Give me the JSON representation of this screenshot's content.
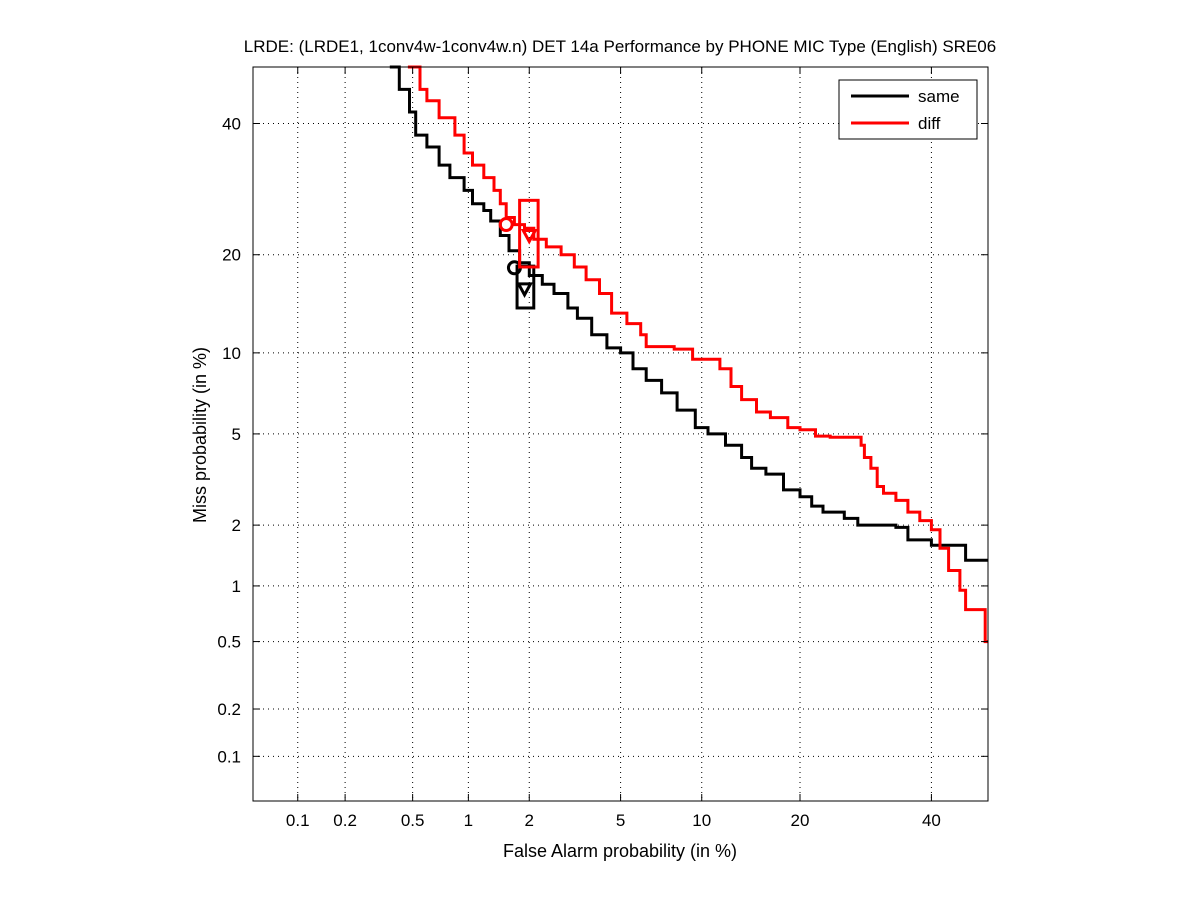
{
  "chart_data": {
    "type": "line",
    "title": "LRDE: (LRDE1, 1conv4w-1conv4w.n) DET 14a Performance by PHONE MIC Type (English) SRE06",
    "xlabel": "False Alarm probability (in %)",
    "ylabel": "Miss probability (in %)",
    "xscale": "normal-deviate (probit)",
    "yscale": "normal-deviate (probit)",
    "xlim": [
      0.05,
      50
    ],
    "ylim": [
      0.05,
      50
    ],
    "grid": true,
    "legend_position": "top-right",
    "x_ticks": [
      {
        "value": 0.1,
        "label": "0.1"
      },
      {
        "value": 0.2,
        "label": "0.2"
      },
      {
        "value": 0.5,
        "label": "0.5"
      },
      {
        "value": 1,
        "label": "1"
      },
      {
        "value": 2,
        "label": "2"
      },
      {
        "value": 5,
        "label": "5"
      },
      {
        "value": 10,
        "label": "10"
      },
      {
        "value": 20,
        "label": "20"
      },
      {
        "value": 40,
        "label": "40"
      }
    ],
    "y_ticks": [
      {
        "value": 0.1,
        "label": "0.1"
      },
      {
        "value": 0.2,
        "label": "0.2"
      },
      {
        "value": 0.5,
        "label": "0.5"
      },
      {
        "value": 1,
        "label": "1"
      },
      {
        "value": 2,
        "label": "2"
      },
      {
        "value": 5,
        "label": "5"
      },
      {
        "value": 10,
        "label": "10"
      },
      {
        "value": 20,
        "label": "20"
      },
      {
        "value": 40,
        "label": "40"
      }
    ],
    "series": [
      {
        "name": "same",
        "color": "#000000",
        "points": [
          [
            0.37,
            50
          ],
          [
            0.42,
            46
          ],
          [
            0.48,
            42
          ],
          [
            0.52,
            38
          ],
          [
            0.6,
            36
          ],
          [
            0.7,
            33
          ],
          [
            0.8,
            31
          ],
          [
            0.95,
            29
          ],
          [
            1.05,
            27
          ],
          [
            1.2,
            26
          ],
          [
            1.3,
            24.5
          ],
          [
            1.45,
            22.5
          ],
          [
            1.6,
            20.5
          ],
          [
            1.8,
            19
          ],
          [
            2.0,
            17.5
          ],
          [
            2.3,
            16.5
          ],
          [
            2.6,
            15.5
          ],
          [
            3.0,
            14
          ],
          [
            3.3,
            13
          ],
          [
            3.8,
            11.5
          ],
          [
            4.4,
            10.4
          ],
          [
            5.0,
            10
          ],
          [
            5.6,
            8.8
          ],
          [
            6.3,
            8.0
          ],
          [
            7.2,
            7.2
          ],
          [
            8.2,
            6.2
          ],
          [
            9.5,
            5.3
          ],
          [
            10.5,
            5.0
          ],
          [
            12.0,
            4.5
          ],
          [
            13.5,
            4.0
          ],
          [
            14.5,
            3.6
          ],
          [
            16.0,
            3.4
          ],
          [
            18.0,
            2.9
          ],
          [
            20.0,
            2.7
          ],
          [
            21.5,
            2.45
          ],
          [
            23.0,
            2.3
          ],
          [
            26.0,
            2.15
          ],
          [
            28.0,
            2.0
          ],
          [
            32.0,
            2.0
          ],
          [
            34.0,
            1.95
          ],
          [
            36.0,
            1.7
          ],
          [
            40.0,
            1.6
          ],
          [
            44.0,
            1.6
          ],
          [
            46.0,
            1.35
          ],
          [
            50.0,
            1.35
          ]
        ],
        "operating_point": {
          "fa": 1.9,
          "miss": 16.0
        },
        "min_cost_point": {
          "fa": 1.7,
          "miss": 18.4
        },
        "confidence_box": {
          "fa_min": 1.75,
          "fa_max": 2.1,
          "miss_min": 14.0,
          "miss_max": 18.6
        }
      },
      {
        "name": "diff",
        "color": "#ff0000",
        "points": [
          [
            0.47,
            50
          ],
          [
            0.55,
            46
          ],
          [
            0.6,
            44
          ],
          [
            0.7,
            41
          ],
          [
            0.85,
            38
          ],
          [
            0.95,
            35
          ],
          [
            1.05,
            33
          ],
          [
            1.2,
            31
          ],
          [
            1.35,
            29
          ],
          [
            1.45,
            27
          ],
          [
            1.55,
            25
          ],
          [
            1.7,
            24
          ],
          [
            1.9,
            23.5
          ],
          [
            2.1,
            22
          ],
          [
            2.4,
            21
          ],
          [
            2.8,
            20
          ],
          [
            3.2,
            18.5
          ],
          [
            3.6,
            17
          ],
          [
            4.1,
            15.5
          ],
          [
            4.6,
            13.5
          ],
          [
            5.3,
            12.5
          ],
          [
            6.0,
            11.5
          ],
          [
            6.3,
            10.5
          ],
          [
            7.5,
            10.5
          ],
          [
            8.0,
            10.3
          ],
          [
            9.0,
            10.3
          ],
          [
            9.3,
            9.5
          ],
          [
            11.0,
            9.5
          ],
          [
            11.5,
            8.8
          ],
          [
            12.5,
            7.6
          ],
          [
            13.5,
            6.8
          ],
          [
            15.0,
            6.1
          ],
          [
            16.5,
            5.8
          ],
          [
            18.5,
            5.3
          ],
          [
            20.0,
            5.2
          ],
          [
            22.0,
            4.9
          ],
          [
            24.0,
            4.85
          ],
          [
            27.0,
            4.85
          ],
          [
            28.5,
            4.5
          ],
          [
            29.0,
            4.0
          ],
          [
            30.0,
            3.6
          ],
          [
            31.0,
            3.0
          ],
          [
            32.0,
            2.8
          ],
          [
            34.0,
            2.6
          ],
          [
            36.0,
            2.3
          ],
          [
            38.0,
            2.1
          ],
          [
            40.0,
            1.9
          ],
          [
            41.5,
            1.55
          ],
          [
            43.0,
            1.2
          ],
          [
            45.0,
            0.95
          ],
          [
            46.0,
            0.75
          ],
          [
            48.0,
            0.75
          ],
          [
            49.5,
            0.5
          ],
          [
            50.0,
            0.5
          ]
        ],
        "operating_point": {
          "fa": 2.0,
          "miss": 22.5
        },
        "min_cost_point": {
          "fa": 1.55,
          "miss": 24.0
        },
        "confidence_box": {
          "fa_min": 1.8,
          "fa_max": 2.2,
          "miss_min": 18.5,
          "miss_max": 27.5
        }
      }
    ]
  }
}
